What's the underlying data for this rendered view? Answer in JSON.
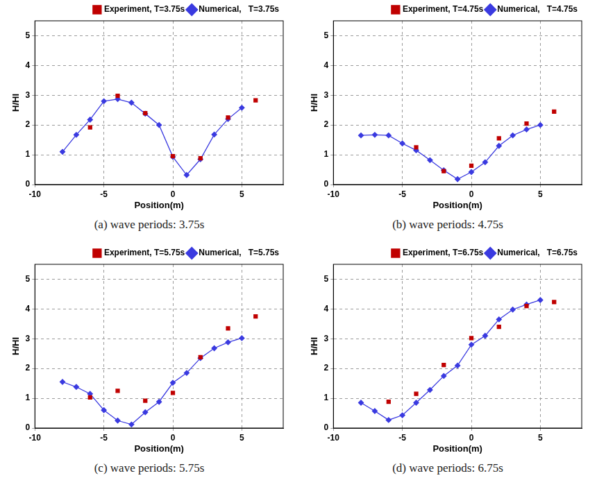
{
  "chart_data": [
    {
      "type": "line",
      "title": "(a) wave periods: 3.75s",
      "x_label": "Position(m)",
      "y_label": "H/HI",
      "xlim": [
        -10,
        8
      ],
      "xticks": [
        -10,
        -5,
        0,
        5
      ],
      "ylim": [
        0,
        5.5
      ],
      "yticks": [
        0,
        1,
        2,
        3,
        4,
        5
      ],
      "grid": true,
      "legend": "top-right",
      "series": [
        {
          "name": "Experiment, T=3.75s",
          "type": "scatter",
          "marker": "square",
          "color": "#c00000",
          "x": [
            -6,
            -4,
            -2,
            0,
            2,
            4,
            6
          ],
          "values": [
            1.92,
            2.98,
            2.4,
            0.95,
            0.88,
            2.25,
            2.83
          ]
        },
        {
          "name": "Numerical,   T=3.75s",
          "type": "line",
          "marker": "diamond",
          "color": "#3a3ae0",
          "x": [
            -8,
            -7,
            -6,
            -5,
            -4,
            -3,
            -2,
            -1,
            0,
            1,
            2,
            3,
            4,
            5
          ],
          "values": [
            1.1,
            1.67,
            2.18,
            2.8,
            2.87,
            2.75,
            2.38,
            2.0,
            0.93,
            0.32,
            0.85,
            1.68,
            2.2,
            2.58
          ]
        }
      ]
    },
    {
      "type": "line",
      "title": "(b) wave periods: 4.75s",
      "x_label": "Position(m)",
      "y_label": "H/HI",
      "xlim": [
        -10,
        8
      ],
      "xticks": [
        -10,
        -5,
        0,
        5
      ],
      "ylim": [
        0,
        5.5
      ],
      "yticks": [
        0,
        1,
        2,
        3,
        4,
        5
      ],
      "grid": true,
      "legend": "top-right",
      "series": [
        {
          "name": "Experiment, T=4.75s",
          "type": "scatter",
          "marker": "square",
          "color": "#c00000",
          "x": [
            -4,
            -2,
            0,
            2,
            4,
            6
          ],
          "values": [
            1.25,
            0.45,
            0.63,
            1.55,
            2.05,
            2.45
          ]
        },
        {
          "name": "Numerical,   T=4.75s",
          "type": "line",
          "marker": "diamond",
          "color": "#3a3ae0",
          "x": [
            -8,
            -7,
            -6,
            -5,
            -4,
            -3,
            -2,
            -1,
            0,
            1,
            2,
            3,
            4,
            5
          ],
          "values": [
            1.65,
            1.67,
            1.65,
            1.38,
            1.15,
            0.82,
            0.48,
            0.18,
            0.42,
            0.75,
            1.3,
            1.65,
            1.85,
            2.0
          ]
        }
      ]
    },
    {
      "type": "line",
      "title": "(c) wave periods: 5.75s",
      "x_label": "Position(m)",
      "y_label": "H/HI",
      "xlim": [
        -10,
        8
      ],
      "xticks": [
        -10,
        -5,
        0,
        5
      ],
      "ylim": [
        0,
        5.5
      ],
      "yticks": [
        0,
        1,
        2,
        3,
        4,
        5
      ],
      "grid": true,
      "legend": "top-right",
      "series": [
        {
          "name": "Experiment, T=5.75s",
          "type": "scatter",
          "marker": "square",
          "color": "#c00000",
          "x": [
            -6,
            -4,
            -2,
            0,
            2,
            4,
            6
          ],
          "values": [
            1.03,
            1.25,
            0.92,
            1.18,
            2.38,
            3.35,
            3.75
          ]
        },
        {
          "name": "Numerical,   T=5.75s",
          "type": "line",
          "marker": "diamond",
          "color": "#3a3ae0",
          "x": [
            -8,
            -7,
            -6,
            -5,
            -4,
            -3,
            -2,
            -1,
            0,
            1,
            2,
            3,
            4,
            5
          ],
          "values": [
            1.55,
            1.38,
            1.15,
            0.6,
            0.25,
            0.12,
            0.53,
            0.88,
            1.52,
            1.85,
            2.35,
            2.68,
            2.88,
            3.02
          ]
        }
      ]
    },
    {
      "type": "line",
      "title": "(d) wave periods: 6.75s",
      "x_label": "Position(m)",
      "y_label": "H/HI",
      "xlim": [
        -10,
        8
      ],
      "xticks": [
        -10,
        -5,
        0,
        5
      ],
      "ylim": [
        0,
        5.5
      ],
      "yticks": [
        0,
        1,
        2,
        3,
        4,
        5
      ],
      "grid": true,
      "legend": "top-right",
      "series": [
        {
          "name": "Experiment, T=6.75s",
          "type": "scatter",
          "marker": "square",
          "color": "#c00000",
          "x": [
            -6,
            -4,
            -2,
            0,
            2,
            4,
            6
          ],
          "values": [
            0.88,
            1.15,
            2.12,
            3.02,
            3.4,
            4.1,
            4.23
          ]
        },
        {
          "name": "Numerical,   T=6.75s",
          "type": "line",
          "marker": "diamond",
          "color": "#3a3ae0",
          "x": [
            -8,
            -7,
            -6,
            -5,
            -4,
            -3,
            -2,
            -1,
            0,
            1,
            2,
            3,
            4,
            5
          ],
          "values": [
            0.85,
            0.57,
            0.27,
            0.43,
            0.85,
            1.28,
            1.75,
            2.1,
            2.8,
            3.1,
            3.65,
            3.98,
            4.15,
            4.3
          ]
        }
      ]
    }
  ]
}
